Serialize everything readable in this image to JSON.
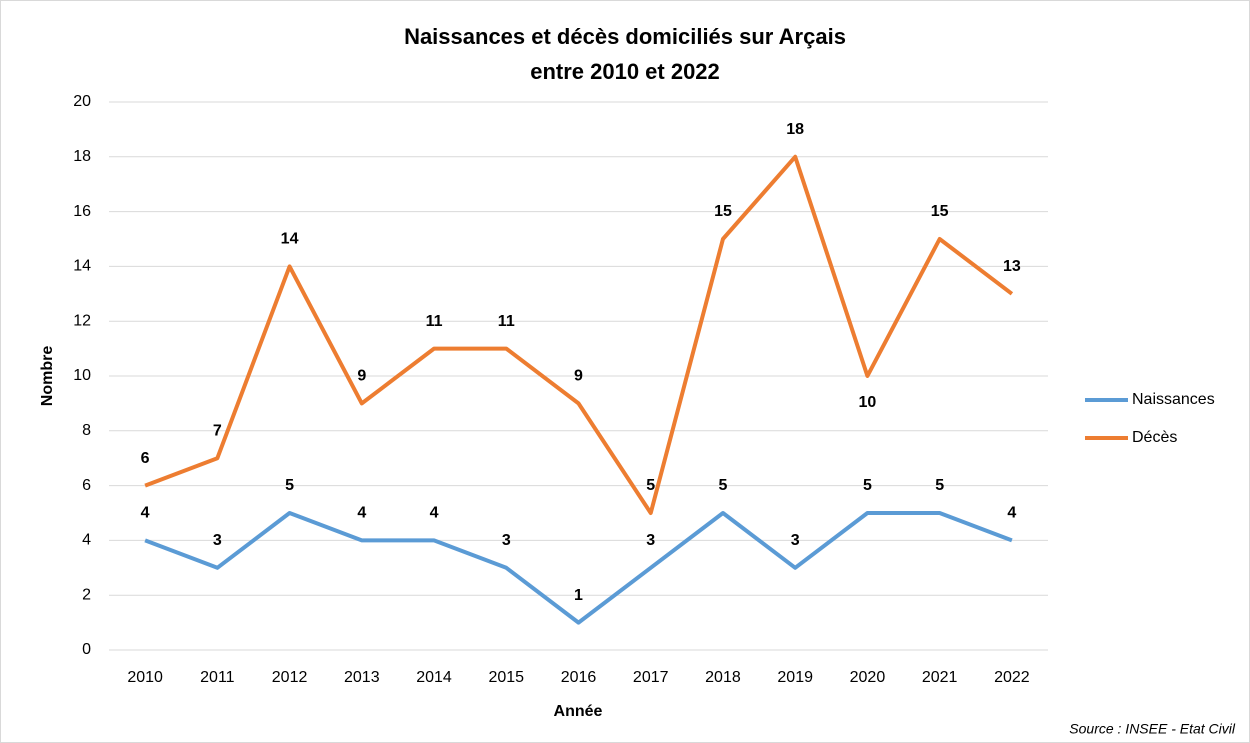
{
  "chart_data": {
    "type": "line",
    "title": [
      "Naissances et décès domiciliés sur Arçais",
      "entre 2010 et 2022"
    ],
    "x_label": "Année",
    "y_label": "Nombre",
    "source": "Source : INSEE - Etat Civil",
    "categories": [
      "2010",
      "2011",
      "2012",
      "2013",
      "2014",
      "2015",
      "2016",
      "2017",
      "2018",
      "2019",
      "2020",
      "2021",
      "2022"
    ],
    "series": [
      {
        "name": "Naissances",
        "color": "#5b9bd5",
        "values": [
          4,
          3,
          5,
          4,
          4,
          3,
          1,
          3,
          5,
          3,
          5,
          5,
          4
        ]
      },
      {
        "name": "Décès",
        "color": "#ed7d31",
        "values": [
          6,
          7,
          14,
          9,
          11,
          11,
          9,
          5,
          15,
          18,
          10,
          15,
          13
        ]
      }
    ],
    "ylim": [
      0,
      20
    ],
    "yticks": [
      0,
      2,
      4,
      6,
      8,
      10,
      12,
      14,
      16,
      18,
      20
    ],
    "grid": true,
    "legend": "right"
  }
}
